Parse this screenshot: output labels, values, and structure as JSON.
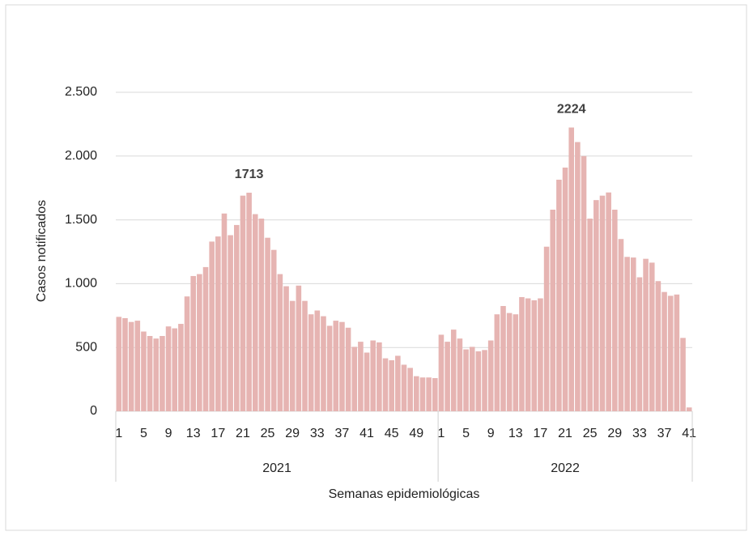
{
  "chart_data": {
    "type": "bar",
    "y_label": "Casos notificados",
    "x_label": "Semanas epidemiológicas",
    "color": "#e6b4b2",
    "ylim": [
      0,
      2500
    ],
    "yticks": [
      0,
      500,
      {
        "value": 1000,
        "label": "1.000"
      },
      {
        "value": 1500,
        "label": "1.500"
      },
      {
        "value": 2000,
        "label": "2.000"
      },
      {
        "value": 2500,
        "label": "2.500"
      }
    ],
    "grid": true,
    "groups": [
      {
        "label": "2021",
        "categories": [
          "1",
          null,
          null,
          null,
          "5",
          null,
          null,
          null,
          "9",
          null,
          null,
          null,
          "13",
          null,
          null,
          null,
          "17",
          null,
          null,
          null,
          "21",
          null,
          null,
          null,
          "25",
          null,
          null,
          null,
          "29",
          null,
          null,
          null,
          "33",
          null,
          null,
          null,
          "37",
          null,
          null,
          null,
          "41",
          null,
          null,
          null,
          "45",
          null,
          null,
          null,
          "49",
          null,
          null,
          null
        ],
        "values": [
          740,
          730,
          700,
          710,
          625,
          590,
          570,
          590,
          665,
          650,
          685,
          900,
          1060,
          1075,
          1130,
          1330,
          1370,
          1550,
          1380,
          1460,
          1690,
          1713,
          1545,
          1510,
          1360,
          1265,
          1075,
          980,
          865,
          985,
          865,
          760,
          790,
          745,
          670,
          710,
          700,
          655,
          505,
          545,
          460,
          555,
          540,
          415,
          400,
          435,
          365,
          340,
          275,
          265,
          265,
          260
        ],
        "value_labels": [
          null,
          null,
          null,
          null,
          null,
          null,
          null,
          null,
          null,
          null,
          null,
          null,
          null,
          null,
          null,
          null,
          null,
          null,
          null,
          null,
          null,
          "1713",
          null,
          null,
          null,
          null,
          null,
          null,
          null,
          null,
          null,
          null,
          null,
          null,
          null,
          null,
          null,
          null,
          null,
          null,
          null,
          null,
          null,
          null,
          null,
          null,
          null,
          null,
          null,
          null,
          null,
          null
        ]
      },
      {
        "label": "2022",
        "categories": [
          "1",
          null,
          null,
          null,
          "5",
          null,
          null,
          null,
          "9",
          null,
          null,
          null,
          "13",
          null,
          null,
          null,
          "17",
          null,
          null,
          null,
          "21",
          null,
          null,
          null,
          "25",
          null,
          null,
          null,
          "29",
          null,
          null,
          null,
          "33",
          null,
          null,
          null,
          "37",
          null,
          null,
          null,
          "41"
        ],
        "values": [
          600,
          545,
          640,
          570,
          485,
          505,
          470,
          480,
          555,
          760,
          825,
          770,
          760,
          895,
          885,
          870,
          885,
          1290,
          1580,
          1815,
          1910,
          2224,
          2110,
          2000,
          1510,
          1655,
          1690,
          1715,
          1580,
          1350,
          1210,
          1205,
          1050,
          1195,
          1165,
          1020,
          935,
          905,
          915,
          575,
          30
        ],
        "value_labels": [
          null,
          null,
          null,
          null,
          null,
          null,
          null,
          null,
          null,
          null,
          null,
          null,
          null,
          null,
          null,
          null,
          null,
          null,
          null,
          null,
          null,
          "2224",
          null,
          null,
          null,
          null,
          null,
          null,
          null,
          null,
          null,
          null,
          null,
          null,
          null,
          null,
          null,
          null,
          null,
          null,
          null
        ]
      }
    ]
  }
}
